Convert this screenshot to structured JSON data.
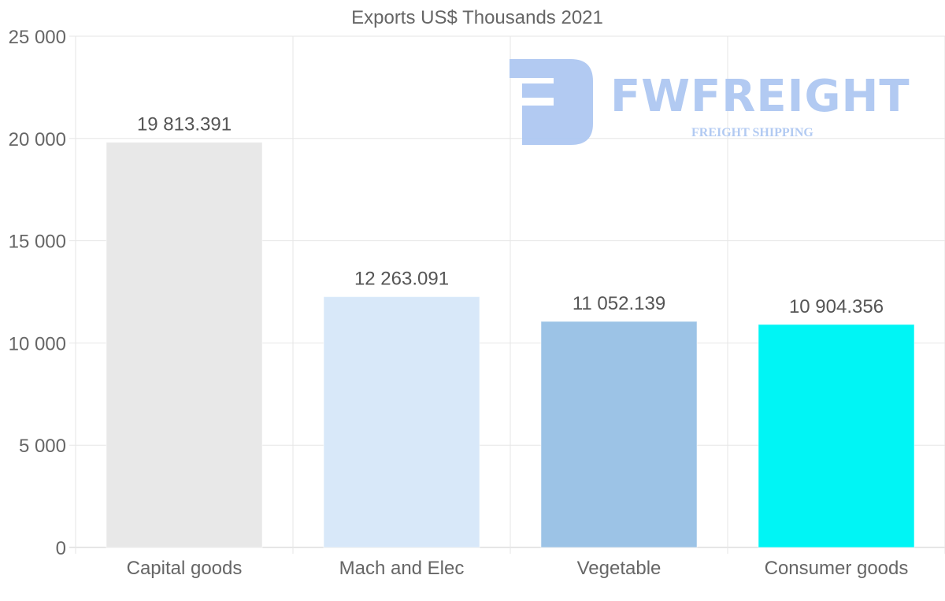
{
  "chart_data": {
    "type": "bar",
    "title": "Exports US$ Thousands 2021",
    "categories": [
      "Capital goods",
      "Mach and Elec",
      "Vegetable",
      "Consumer goods"
    ],
    "values": [
      19813.391,
      12263.091,
      11052.139,
      10904.356
    ],
    "data_labels": [
      "19 813.391",
      "12 263.091",
      "11 052.139",
      "10 904.356"
    ],
    "colors": [
      "#e8e8e8",
      "#d8e8f9",
      "#9cc3e6",
      "#00f5f5"
    ],
    "ylim": [
      0,
      25000
    ],
    "yticks": [
      0,
      5000,
      10000,
      15000,
      20000,
      25000
    ],
    "ytick_labels": [
      "0",
      "5 000",
      "10 000",
      "15 000",
      "20 000",
      "25 000"
    ],
    "xlabel": "",
    "ylabel": "",
    "grid": true,
    "legend": "none"
  },
  "watermark": {
    "brand": "FWFREIGHT",
    "tagline": "FREIGHT SHIPPING"
  }
}
